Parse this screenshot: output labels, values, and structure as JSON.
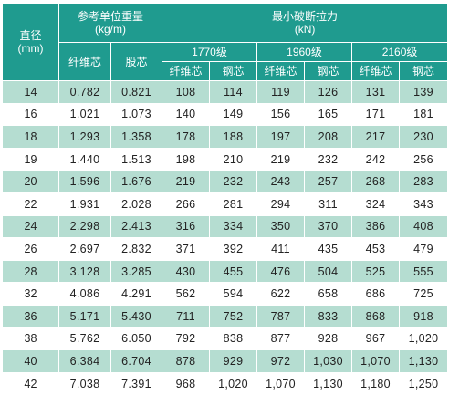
{
  "header": {
    "diameter_label": "直径",
    "diameter_unit": "(mm)",
    "weight_label": "参考单位重量",
    "weight_unit": "(kg/m)",
    "force_label": "最小破断拉力",
    "force_unit": "(kN)",
    "fiber_core": "纤维芯",
    "strand_core": "股芯",
    "steel_core": "钢芯",
    "grades": [
      "1770级",
      "1960级",
      "2160级"
    ]
  },
  "rows": [
    [
      "14",
      "0.782",
      "0.821",
      "108",
      "114",
      "119",
      "126",
      "131",
      "139"
    ],
    [
      "16",
      "1.021",
      "1.073",
      "140",
      "149",
      "156",
      "165",
      "171",
      "181"
    ],
    [
      "18",
      "1.293",
      "1.358",
      "178",
      "188",
      "197",
      "208",
      "217",
      "230"
    ],
    [
      "19",
      "1.440",
      "1.513",
      "198",
      "210",
      "219",
      "232",
      "242",
      "256"
    ],
    [
      "20",
      "1.596",
      "1.676",
      "219",
      "232",
      "243",
      "257",
      "268",
      "283"
    ],
    [
      "22",
      "1.931",
      "2.028",
      "266",
      "281",
      "294",
      "311",
      "324",
      "343"
    ],
    [
      "24",
      "2.298",
      "2.413",
      "316",
      "334",
      "350",
      "370",
      "386",
      "408"
    ],
    [
      "26",
      "2.697",
      "2.832",
      "371",
      "392",
      "411",
      "435",
      "453",
      "479"
    ],
    [
      "28",
      "3.128",
      "3.285",
      "430",
      "455",
      "476",
      "504",
      "525",
      "555"
    ],
    [
      "32",
      "4.086",
      "4.291",
      "562",
      "594",
      "622",
      "658",
      "686",
      "725"
    ],
    [
      "36",
      "5.171",
      "5.430",
      "711",
      "752",
      "787",
      "833",
      "868",
      "918"
    ],
    [
      "38",
      "5.762",
      "6.050",
      "792",
      "838",
      "877",
      "928",
      "967",
      "1,020"
    ],
    [
      "40",
      "6.384",
      "6.704",
      "878",
      "929",
      "972",
      "1,030",
      "1,070",
      "1,130"
    ],
    [
      "42",
      "7.038",
      "7.391",
      "968",
      "1,020",
      "1,070",
      "1,130",
      "1,180",
      "1,250"
    ]
  ]
}
